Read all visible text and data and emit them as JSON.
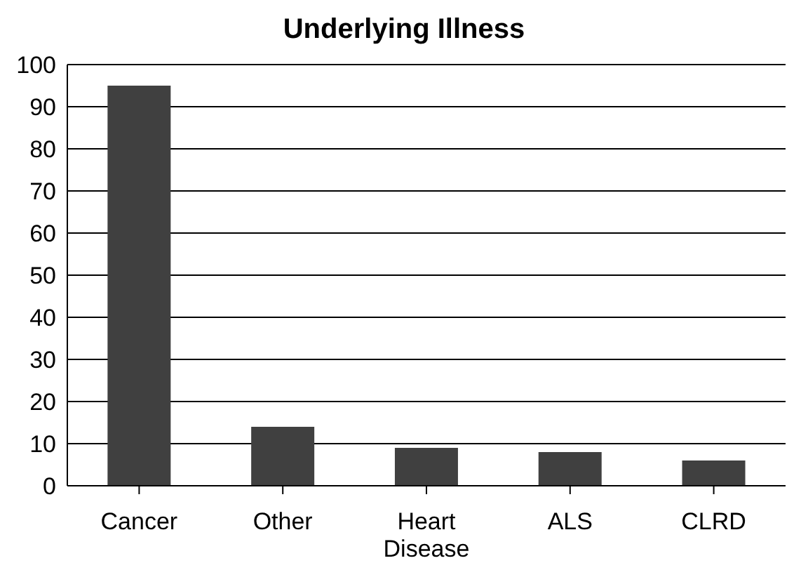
{
  "chart_data": {
    "type": "bar",
    "title": "Underlying Illness",
    "categories": [
      "Cancer",
      "Other",
      "Heart Disease",
      "ALS",
      "CLRD"
    ],
    "values": [
      95,
      14,
      9,
      8,
      6
    ],
    "color": "#404040",
    "ylim": [
      0,
      100
    ],
    "yticks": [
      0,
      10,
      20,
      30,
      40,
      50,
      60,
      70,
      80,
      90,
      100
    ],
    "grid": "y"
  }
}
